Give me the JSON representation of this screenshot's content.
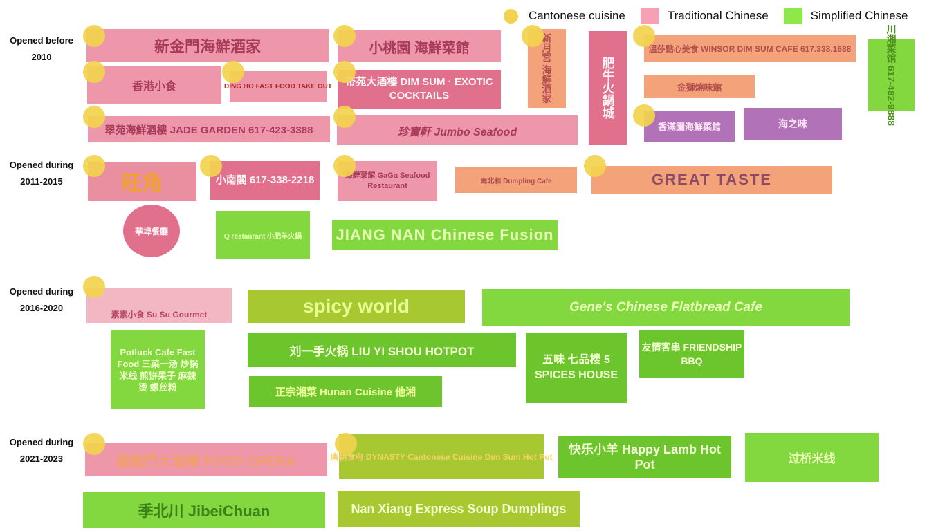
{
  "legend": {
    "cantonese": "Cantonese cuisine",
    "traditional": "Traditional Chinese",
    "simplified": "Simplified Chinese",
    "colors": {
      "cantonese": "#f2d24e",
      "traditional": "#f6a0b4",
      "simplified": "#8fe84a"
    }
  },
  "periods": {
    "p1": {
      "line1": "Opened before",
      "line2": "2010"
    },
    "p2": {
      "line1": "Opened during",
      "line2": "2011-2015"
    },
    "p3": {
      "line1": "Opened during",
      "line2": "2016-2020"
    },
    "p4": {
      "line1": "Opened during",
      "line2": "2021-2023"
    }
  },
  "signs": {
    "newgolden": {
      "text": "新金門海鮮酒家"
    },
    "littlepeach": {
      "text": "小桃園 海鮮菜館"
    },
    "moonvilla": {
      "text": "新月宮 海鮮酒家"
    },
    "feiniu": {
      "text": "肥牛火鍋城"
    },
    "winsor": {
      "text": "溫莎點心美食 WINSOR DIM SUM CAFE 617.338.1688"
    },
    "chinagourmet": {
      "text": "川湘菜馆 617-482-9888"
    },
    "hongkongeatery": {
      "text": "香港小食"
    },
    "dingho": {
      "text": "DING HO FAST FOOD TAKE OUT"
    },
    "empire": {
      "text": "帝苑大酒樓 DIM SUM · EXOTIC COCKTAILS"
    },
    "goldenbbq": {
      "text": "金獅燒味館"
    },
    "hongkongseafood": {
      "text": "香滿園海鮮菜館"
    },
    "taiwancafe": {
      "text": "海之味"
    },
    "jadegarden": {
      "text": "翠苑海鮮酒樓 JADE GARDEN 617-423-3388"
    },
    "jumbo": {
      "text": "珍寶軒 Jumbo Seafood"
    },
    "wongkok": {
      "text": "旺角"
    },
    "littlesouthern": {
      "text": "小南閣 617-338-2218"
    },
    "gaga": {
      "text": "海鮮菜館 GaGa Seafood Restaurant"
    },
    "nanbeihe": {
      "text": "南北和 Dumpling Cafe"
    },
    "greattaste": {
      "text": "GREAT TASTE"
    },
    "chinatowncafe": {
      "text": "華埠餐廳"
    },
    "qrestaurant": {
      "text": "Q restaurant 小肥羊火鍋"
    },
    "jiangnan": {
      "text": "JIANG NAN Chinese Fusion"
    },
    "susu": {
      "text": "素素小食 Su Su Gourmet"
    },
    "spicyworld": {
      "text": "spicy world"
    },
    "genes": {
      "text": "Gene's Chinese Flatbread Cafe"
    },
    "potluck": {
      "text": "Potluck Cafe Fast Food 三菜一汤 炒锅米线 煎饼果子 麻辣烫 螺丝粉"
    },
    "liuyishou": {
      "text": "刘一手火锅 LIU YI SHOU HOTPOT"
    },
    "fivespices": {
      "text": "五味 七品楼 5 SPICES HOUSE"
    },
    "friendship": {
      "text": "友情客串 FRIENDSHIP BBQ"
    },
    "hunan": {
      "text": "正宗湘菜 Hunan Cuisine 他湘"
    },
    "foodopera": {
      "text": "囍臨門大酒樓 FOOD OPERA"
    },
    "dynasty": {
      "text": "唐朝食府 DYNASTY Cantonese Cuisine Dim Sum Hot Pot"
    },
    "happylamb": {
      "text": "快乐小羊 Happy Lamb Hot Pot"
    },
    "tensecond": {
      "text": "过桥米线"
    },
    "jibeichuan": {
      "text": "季北川 JibeiChuan"
    },
    "nanxiang": {
      "text": "Nan Xiang Express Soup Dumplings"
    }
  }
}
